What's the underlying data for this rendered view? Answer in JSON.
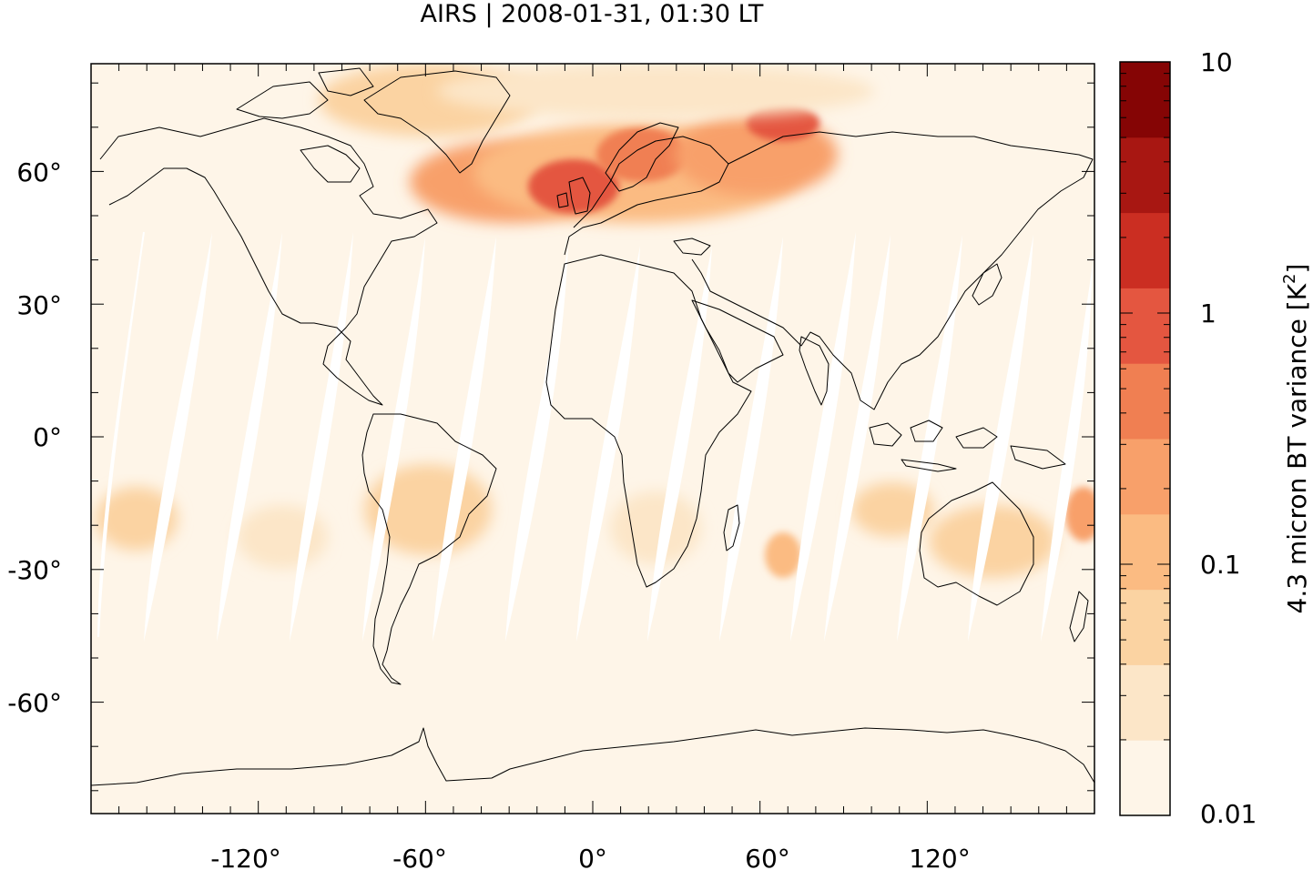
{
  "title": "AIRS | 2008-01-31, 01:30 LT",
  "map": {
    "projection": "equirectangular",
    "lon_range": [
      -180,
      180
    ],
    "lat_range": [
      -90,
      90
    ],
    "x_ticks": [
      "-120°",
      "-60°",
      "0°",
      "60°",
      "120°"
    ],
    "y_ticks": [
      "60°",
      "30°",
      "0°",
      "-30°",
      "-60°"
    ],
    "background_color": "#fef5e8",
    "orbit_gap_color": "#ffffff",
    "coastline_color": "#000000"
  },
  "colorbar": {
    "label": "4.3 micron BT variance [K",
    "label_sup": "2",
    "label_end": "]",
    "scale": "log",
    "range": [
      0.01,
      10
    ],
    "tick_labels": [
      "10",
      "1",
      "0.1",
      "0.01"
    ],
    "colors": [
      "#fef5e8",
      "#fce6c8",
      "#fbd3a2",
      "#fbbb82",
      "#f8a06a",
      "#f07f52",
      "#e45640",
      "#cb2e22",
      "#a81712",
      "#850505"
    ]
  }
}
